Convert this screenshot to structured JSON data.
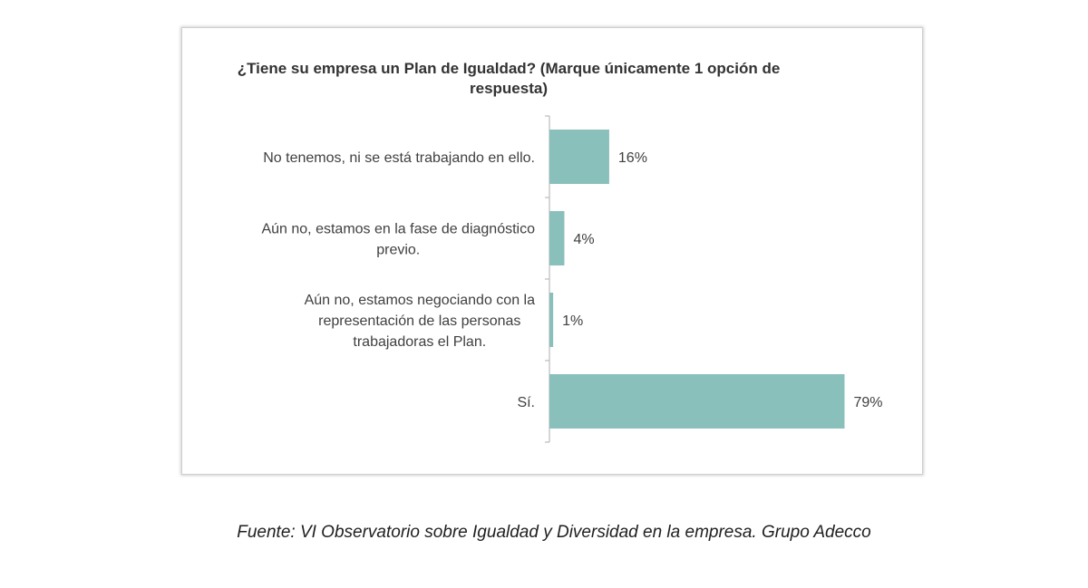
{
  "chart_data": {
    "type": "bar",
    "orientation": "horizontal",
    "title": "¿Tiene su empresa un Plan de Igualdad? (Marque únicamente 1 opción de respuesta)",
    "categories": [
      [
        "No tenemos, ni se está trabajando en ello."
      ],
      [
        "Aún no, estamos en la fase de diagnóstico",
        "previo."
      ],
      [
        "Aún no, estamos negociando con la",
        "representación de las personas",
        "trabajadoras el Plan."
      ],
      [
        "Sí."
      ]
    ],
    "values": [
      16,
      4,
      1,
      79
    ],
    "data_labels": [
      "16%",
      "4%",
      "1%",
      "79%"
    ],
    "unit": "%",
    "xlim": [
      0,
      100
    ],
    "grid": false,
    "legend": "none",
    "bar_color": "#8ac0bc",
    "axis_color": "#bfbfbf"
  },
  "source": "Fuente: VI Observatorio sobre Igualdad y Diversidad en la empresa. Grupo Adecco"
}
